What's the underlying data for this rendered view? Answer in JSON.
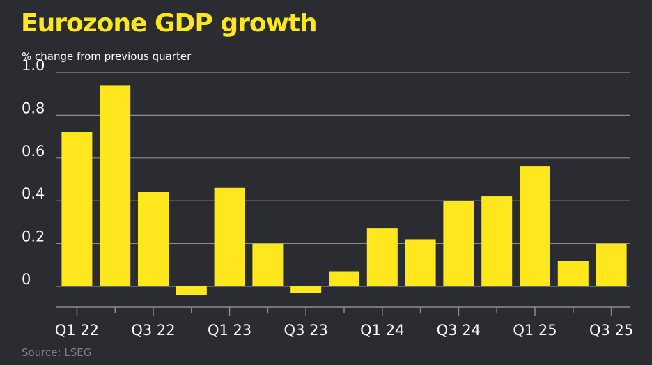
{
  "colors": {
    "background": "#2b2c31",
    "bar": "#ffe71e",
    "title": "#ffe71e",
    "grid": "#8a8b90",
    "text": "#ffffff",
    "source": "#808186"
  },
  "chart_data": {
    "type": "bar",
    "title": "Eurozone GDP growth",
    "subtitle": "% change from previous quarter",
    "source": "Source: LSEG",
    "xlabel": "",
    "ylabel": "",
    "ylim": [
      -0.05,
      1.0
    ],
    "yticks": [
      0,
      0.2,
      0.4,
      0.6,
      0.8,
      1.0
    ],
    "ytick_labels": [
      "0",
      "0.2",
      "0.4",
      "0.6",
      "0.8",
      "1.0"
    ],
    "grid": true,
    "categories": [
      "Q1 22",
      "Q2 22",
      "Q3 22",
      "Q4 22",
      "Q1 23",
      "Q2 23",
      "Q3 23",
      "Q4 23",
      "Q1 24",
      "Q2 24",
      "Q3 24",
      "Q4 24",
      "Q1 25",
      "Q2 25",
      "Q3 25"
    ],
    "xtick_labels": [
      "Q1 22",
      "",
      "Q3 22",
      "",
      "Q1 23",
      "",
      "Q3 23",
      "",
      "Q1 24",
      "",
      "Q3 24",
      "",
      "Q1 25",
      "",
      "Q3 25"
    ],
    "values": [
      0.72,
      0.94,
      0.44,
      -0.04,
      0.46,
      0.2,
      -0.03,
      0.07,
      0.27,
      0.22,
      0.4,
      0.42,
      0.56,
      0.12,
      0.2
    ]
  }
}
